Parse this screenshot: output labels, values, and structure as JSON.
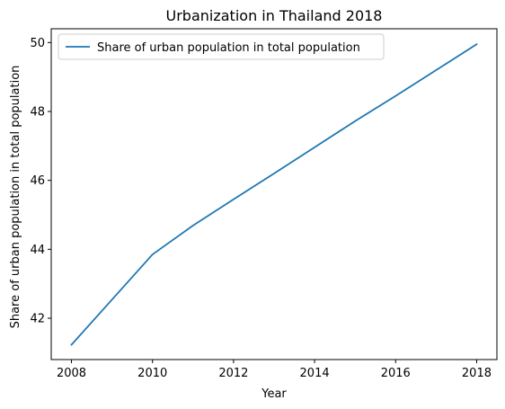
{
  "chart_data": {
    "type": "line",
    "title": "Urbanization in Thailand 2018",
    "xlabel": "Year",
    "ylabel": "Share of urban population in total population",
    "x": [
      2008,
      2009,
      2010,
      2011,
      2012,
      2013,
      2014,
      2015,
      2016,
      2017,
      2018
    ],
    "series": [
      {
        "name": "Share of urban population in total population",
        "color": "#1f77b4",
        "values": [
          41.23,
          42.54,
          43.85,
          44.69,
          45.45,
          46.2,
          46.96,
          47.72,
          48.45,
          49.2,
          49.95
        ]
      }
    ],
    "xlim": [
      2007.5,
      2018.5
    ],
    "ylim": [
      40.8,
      50.4
    ],
    "xticks": [
      2008,
      2010,
      2012,
      2014,
      2016,
      2018
    ],
    "yticks": [
      42,
      44,
      46,
      48,
      50
    ],
    "grid": false,
    "legend_position": "top-left"
  }
}
